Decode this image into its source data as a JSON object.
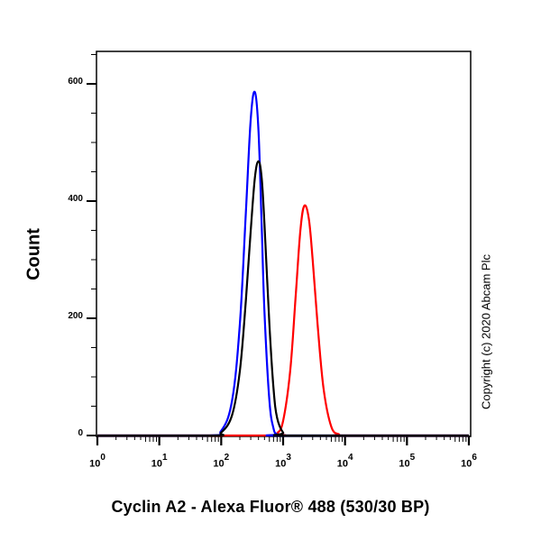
{
  "chart_data": {
    "type": "line",
    "title": "",
    "xlabel": "Cyclin A2 - Alexa Fluor® 488 (530/30 BP)",
    "ylabel": "Count",
    "xscale": "log",
    "xlim": [
      1,
      1000000
    ],
    "ylim": [
      0,
      655
    ],
    "x_ticks": [
      "10^0",
      "10^1",
      "10^2",
      "10^3",
      "10^4",
      "10^5",
      "10^6"
    ],
    "y_ticks": [
      0,
      200,
      400,
      600
    ],
    "grid": false,
    "legend": null,
    "annotation": "Copyright (c) 2020 Abcam Plc",
    "series": [
      {
        "name": "Blue histogram",
        "color": "#0000ff",
        "peak_x": 350,
        "peak_count": 586,
        "x": [
          60,
          100,
          150,
          200,
          250,
          300,
          350,
          400,
          450,
          500,
          600,
          700,
          800,
          1000
        ],
        "values": [
          0,
          8,
          60,
          190,
          380,
          540,
          586,
          520,
          360,
          210,
          60,
          12,
          2,
          0
        ]
      },
      {
        "name": "Black histogram",
        "color": "#000000",
        "peak_x": 430,
        "peak_count": 469,
        "x": [
          70,
          100,
          150,
          200,
          250,
          300,
          350,
          400,
          450,
          500,
          600,
          700,
          800,
          1000,
          1300
        ],
        "values": [
          0,
          5,
          35,
          110,
          230,
          350,
          440,
          468,
          440,
          360,
          190,
          80,
          30,
          5,
          0
        ]
      },
      {
        "name": "Red histogram",
        "color": "#ff0000",
        "peak_x": 2200,
        "peak_count": 392,
        "x": [
          600,
          800,
          1000,
          1300,
          1600,
          1900,
          2200,
          2600,
          3000,
          3600,
          4500,
          6000,
          8000,
          10000
        ],
        "values": [
          0,
          4,
          25,
          110,
          240,
          350,
          392,
          370,
          300,
          190,
          80,
          15,
          2,
          0
        ]
      }
    ]
  },
  "labels": {
    "ylabel": "Count",
    "xlabel": "Cyclin A2 - Alexa Fluor® 488 (530/30 BP)",
    "copyright": "Copyright (c) 2020 Abcam Plc",
    "yticks": [
      "600",
      "400",
      "200",
      "0"
    ],
    "xtick_base": "10",
    "xtick_exps": [
      "0",
      "1",
      "2",
      "3",
      "4",
      "5",
      "6"
    ]
  }
}
